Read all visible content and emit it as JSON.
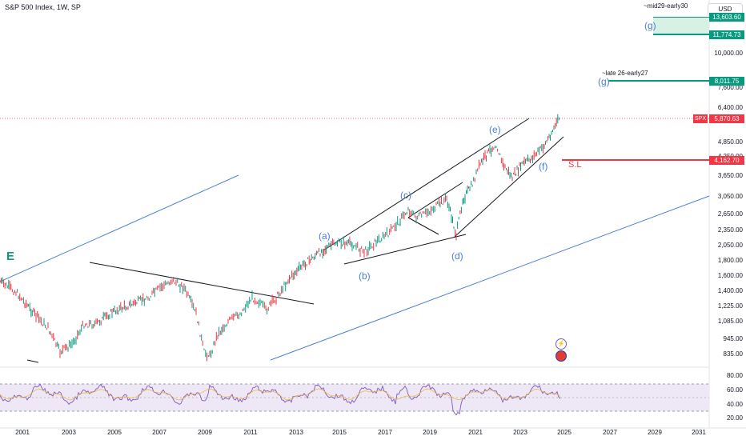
{
  "header": {
    "title": "S&P 500 Index, 1W, SP",
    "currency": "USD"
  },
  "price_axis": [
    "10,000.00",
    "7,600.00",
    "6,400.00",
    "4,850.00",
    "4,250.00",
    "3,650.00",
    "3,050.00",
    "2,650.00",
    "2,350.00",
    "2,050.00",
    "1,800.00",
    "1,600.00",
    "1,400.00",
    "1,225.00",
    "1,085.00",
    "945.00",
    "835.00"
  ],
  "rsi_axis": [
    "80.00",
    "60.00",
    "40.00",
    "20.00"
  ],
  "time_axis": [
    "2001",
    "2003",
    "2005",
    "2007",
    "2009",
    "2011",
    "2013",
    "2015",
    "2017",
    "2019",
    "2021",
    "2023",
    "2025",
    "2027",
    "2029",
    "2031"
  ],
  "price_tags": {
    "t1": "13,603.60",
    "t2": "11,774.73",
    "t3": "8,011.75",
    "spx_symbol": "SPX",
    "spx_price": "5,870.63",
    "stop": "4,162.70"
  },
  "wave_labels": {
    "e_big": "E",
    "a": "(a)",
    "b": "(b)",
    "c": "(c)",
    "d": "(d)",
    "e": "(e)",
    "f": "(f)",
    "g1": "(g)",
    "g2": "(g)"
  },
  "notes": {
    "mid": "~mid29-early30",
    "late": "~late 26-early27",
    "sl": "S.L"
  },
  "colors": {
    "accent": "#089981",
    "stop": "#f23645",
    "rsi": "#7e57c2",
    "wave": "#4a7fd6"
  }
}
